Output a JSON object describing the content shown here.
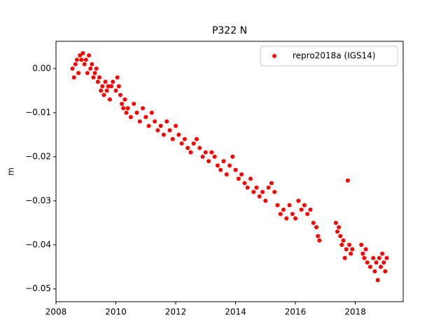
{
  "chart_data": {
    "type": "scatter",
    "title": "P322 N",
    "ylabel": "m",
    "xlim": [
      2008,
      2019.6
    ],
    "xticks": [
      2008,
      2010,
      2012,
      2014,
      2016,
      2018
    ],
    "ylim": [
      -0.0529,
      0.0062
    ],
    "yticks": [
      {
        "value": 0,
        "label": "0.00"
      },
      {
        "value": -0.01,
        "label": "−0.01"
      },
      {
        "value": -0.02,
        "label": "−0.02"
      },
      {
        "value": -0.03,
        "label": "−0.03"
      },
      {
        "value": -0.04,
        "label": "−0.04"
      },
      {
        "value": -0.05,
        "label": "−0.05"
      }
    ],
    "legend": "upper right",
    "series": [
      {
        "name": "repro2018a (IGS14)",
        "color": "#ff0000",
        "x": [
          2008.55,
          2008.6,
          2008.65,
          2008.7,
          2008.75,
          2008.8,
          2008.85,
          2008.9,
          2008.95,
          2009.0,
          2009.05,
          2009.1,
          2009.15,
          2009.2,
          2009.25,
          2009.3,
          2009.35,
          2009.4,
          2009.45,
          2009.5,
          2009.55,
          2009.6,
          2009.65,
          2009.7,
          2009.75,
          2009.8,
          2009.85,
          2009.9,
          2010.0,
          2010.05,
          2010.1,
          2010.15,
          2010.2,
          2010.25,
          2010.3,
          2010.35,
          2010.4,
          2010.5,
          2010.6,
          2010.7,
          2010.8,
          2010.9,
          2011.0,
          2011.1,
          2011.2,
          2011.3,
          2011.4,
          2011.5,
          2011.6,
          2011.7,
          2011.8,
          2011.9,
          2012.0,
          2012.1,
          2012.2,
          2012.3,
          2012.4,
          2012.5,
          2012.6,
          2012.7,
          2012.8,
          2012.9,
          2013.0,
          2013.1,
          2013.2,
          2013.3,
          2013.4,
          2013.5,
          2013.6,
          2013.7,
          2013.8,
          2013.9,
          2014.0,
          2014.1,
          2014.2,
          2014.3,
          2014.4,
          2014.5,
          2014.6,
          2014.7,
          2014.8,
          2014.9,
          2015.0,
          2015.1,
          2015.2,
          2015.3,
          2015.4,
          2015.5,
          2015.6,
          2015.7,
          2015.8,
          2015.9,
          2016.0,
          2016.1,
          2016.2,
          2016.3,
          2016.4,
          2016.5,
          2016.6,
          2016.7,
          2016.75,
          2016.8,
          2017.35,
          2017.4,
          2017.45,
          2017.5,
          2017.55,
          2017.6,
          2017.65,
          2017.7,
          2017.75,
          2017.8,
          2017.85,
          2017.9,
          2018.2,
          2018.25,
          2018.3,
          2018.35,
          2018.4,
          2018.5,
          2018.6,
          2018.65,
          2018.7,
          2018.75,
          2018.8,
          2018.85,
          2018.9,
          2018.95,
          2019.0,
          2019.05
        ],
        "values": [
          0.0,
          -0.002,
          0.001,
          0.002,
          -0.001,
          0.003,
          0.002,
          0.0035,
          0.001,
          0.002,
          -0.001,
          0.003,
          0.0,
          0.001,
          -0.002,
          -0.001,
          0.0,
          -0.003,
          -0.002,
          -0.005,
          -0.004,
          -0.006,
          -0.003,
          -0.005,
          -0.004,
          -0.007,
          -0.004,
          -0.003,
          -0.005,
          -0.002,
          -0.004,
          -0.006,
          -0.008,
          -0.009,
          -0.007,
          -0.01,
          -0.009,
          -0.011,
          -0.008,
          -0.01,
          -0.012,
          -0.009,
          -0.011,
          -0.013,
          -0.01,
          -0.012,
          -0.014,
          -0.013,
          -0.015,
          -0.012,
          -0.014,
          -0.016,
          -0.013,
          -0.015,
          -0.017,
          -0.016,
          -0.018,
          -0.019,
          -0.017,
          -0.016,
          -0.018,
          -0.02,
          -0.019,
          -0.021,
          -0.019,
          -0.02,
          -0.022,
          -0.023,
          -0.021,
          -0.024,
          -0.022,
          -0.02,
          -0.023,
          -0.025,
          -0.024,
          -0.026,
          -0.027,
          -0.025,
          -0.028,
          -0.027,
          -0.029,
          -0.028,
          -0.03,
          -0.027,
          -0.026,
          -0.028,
          -0.031,
          -0.033,
          -0.032,
          -0.034,
          -0.031,
          -0.033,
          -0.034,
          -0.03,
          -0.032,
          -0.031,
          -0.033,
          -0.032,
          -0.035,
          -0.036,
          -0.038,
          -0.039,
          -0.035,
          -0.037,
          -0.036,
          -0.038,
          -0.04,
          -0.039,
          -0.043,
          -0.041,
          -0.0254,
          -0.04,
          -0.042,
          -0.041,
          -0.04,
          -0.042,
          -0.043,
          -0.041,
          -0.044,
          -0.045,
          -0.043,
          -0.046,
          -0.044,
          -0.048,
          -0.043,
          -0.045,
          -0.042,
          -0.044,
          -0.046,
          -0.043
        ]
      }
    ]
  }
}
